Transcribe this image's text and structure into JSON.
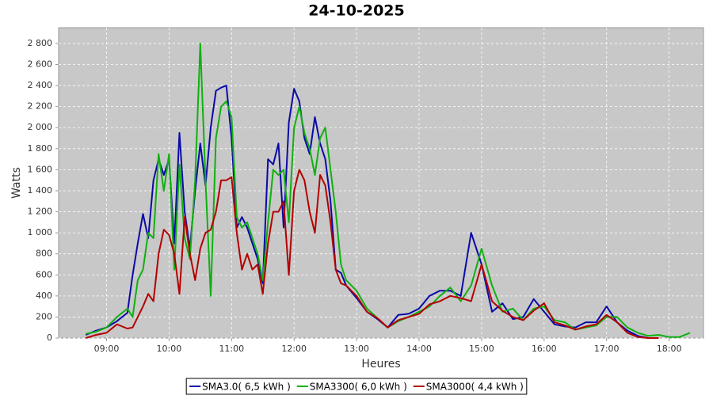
{
  "chart_data": {
    "type": "line",
    "title": "24-10-2025",
    "x_label": "Heures",
    "y_label": "Watts",
    "x": [
      "08:40",
      "08:50",
      "09:00",
      "09:10",
      "09:20",
      "09:25",
      "09:30",
      "09:35",
      "09:40",
      "09:45",
      "09:50",
      "09:55",
      "10:00",
      "10:05",
      "10:10",
      "10:15",
      "10:20",
      "10:25",
      "10:30",
      "10:35",
      "10:40",
      "10:45",
      "10:50",
      "10:55",
      "11:00",
      "11:05",
      "11:10",
      "11:15",
      "11:20",
      "11:25",
      "11:30",
      "11:35",
      "11:40",
      "11:45",
      "11:50",
      "11:55",
      "12:00",
      "12:05",
      "12:10",
      "12:15",
      "12:20",
      "12:25",
      "12:30",
      "12:35",
      "12:40",
      "12:45",
      "12:50",
      "13:00",
      "13:10",
      "13:20",
      "13:30",
      "13:40",
      "13:50",
      "14:00",
      "14:10",
      "14:20",
      "14:30",
      "14:40",
      "14:50",
      "15:00",
      "15:10",
      "15:20",
      "15:30",
      "15:40",
      "15:50",
      "16:00",
      "16:10",
      "16:20",
      "16:30",
      "16:40",
      "16:50",
      "17:00",
      "17:10",
      "17:20",
      "17:30",
      "17:40",
      "17:50",
      "18:00",
      "18:10",
      "18:20"
    ],
    "series": [
      {
        "name": "SMA3.0( 6,5 kWh )",
        "color": "#0a0aa8",
        "values": [
          30,
          70,
          100,
          160,
          240,
          600,
          900,
          1180,
          950,
          1500,
          1700,
          1550,
          1700,
          900,
          1950,
          1200,
          850,
          1400,
          1850,
          1450,
          2000,
          2350,
          2380,
          2400,
          1900,
          1050,
          1150,
          1050,
          900,
          750,
          520,
          1700,
          1650,
          1850,
          1050,
          2050,
          2370,
          2250,
          1900,
          1750,
          2100,
          1850,
          1700,
          1300,
          650,
          620,
          500,
          380,
          250,
          180,
          100,
          220,
          230,
          280,
          400,
          450,
          450,
          400,
          1000,
          700,
          250,
          330,
          180,
          200,
          370,
          250,
          130,
          110,
          100,
          150,
          150,
          300,
          150,
          70,
          20,
          0,
          0,
          null,
          null,
          null
        ]
      },
      {
        "name": "SMA3300( 6,0 kWh )",
        "color": "#10b010",
        "values": [
          40,
          60,
          100,
          200,
          280,
          200,
          550,
          650,
          1000,
          950,
          1750,
          1400,
          1750,
          650,
          1650,
          950,
          750,
          1500,
          2800,
          1500,
          400,
          1900,
          2200,
          2250,
          2100,
          1150,
          1050,
          1100,
          950,
          800,
          550,
          1100,
          1600,
          1550,
          1600,
          1100,
          2000,
          2200,
          1950,
          1800,
          1550,
          1900,
          2000,
          1600,
          1200,
          700,
          550,
          450,
          280,
          190,
          100,
          160,
          200,
          250,
          300,
          400,
          480,
          350,
          500,
          850,
          500,
          250,
          280,
          170,
          280,
          300,
          170,
          150,
          80,
          100,
          120,
          200,
          200,
          100,
          50,
          20,
          30,
          10,
          10,
          50
        ]
      },
      {
        "name": "SMA3000( 4,4 kWh )",
        "color": "#b40000",
        "values": [
          0,
          30,
          50,
          130,
          90,
          100,
          200,
          300,
          420,
          350,
          800,
          1030,
          980,
          800,
          420,
          1150,
          800,
          550,
          850,
          1000,
          1030,
          1200,
          1500,
          1500,
          1530,
          1000,
          650,
          800,
          650,
          700,
          420,
          900,
          1200,
          1200,
          1300,
          600,
          1400,
          1600,
          1500,
          1200,
          1000,
          1550,
          1450,
          1100,
          650,
          520,
          500,
          400,
          250,
          190,
          100,
          170,
          200,
          230,
          320,
          350,
          400,
          380,
          350,
          700,
          350,
          260,
          200,
          170,
          260,
          330,
          150,
          120,
          80,
          110,
          130,
          220,
          150,
          50,
          10,
          0,
          0,
          null,
          null,
          null
        ]
      }
    ],
    "xlim": [
      "08:14",
      "18:33"
    ],
    "xticks": [
      "09:00",
      "10:00",
      "11:00",
      "12:00",
      "13:00",
      "14:00",
      "15:00",
      "16:00",
      "17:00",
      "18:00"
    ],
    "ylim": [
      0,
      2950
    ],
    "yticks": [
      0,
      200,
      400,
      600,
      800,
      {
        "value": 1000,
        "label": "1 000"
      },
      {
        "value": 1200,
        "label": "1 200"
      },
      {
        "value": 1400,
        "label": "1 400"
      },
      {
        "value": 1600,
        "label": "1 600"
      },
      {
        "value": 1800,
        "label": "1 800"
      },
      {
        "value": 2000,
        "label": "2 000"
      },
      {
        "value": 2200,
        "label": "2 200"
      },
      {
        "value": 2400,
        "label": "2 400"
      },
      {
        "value": 2600,
        "label": "2 600"
      },
      {
        "value": 2800,
        "label": "2 800"
      }
    ],
    "grid": true,
    "legend": "bottom"
  }
}
